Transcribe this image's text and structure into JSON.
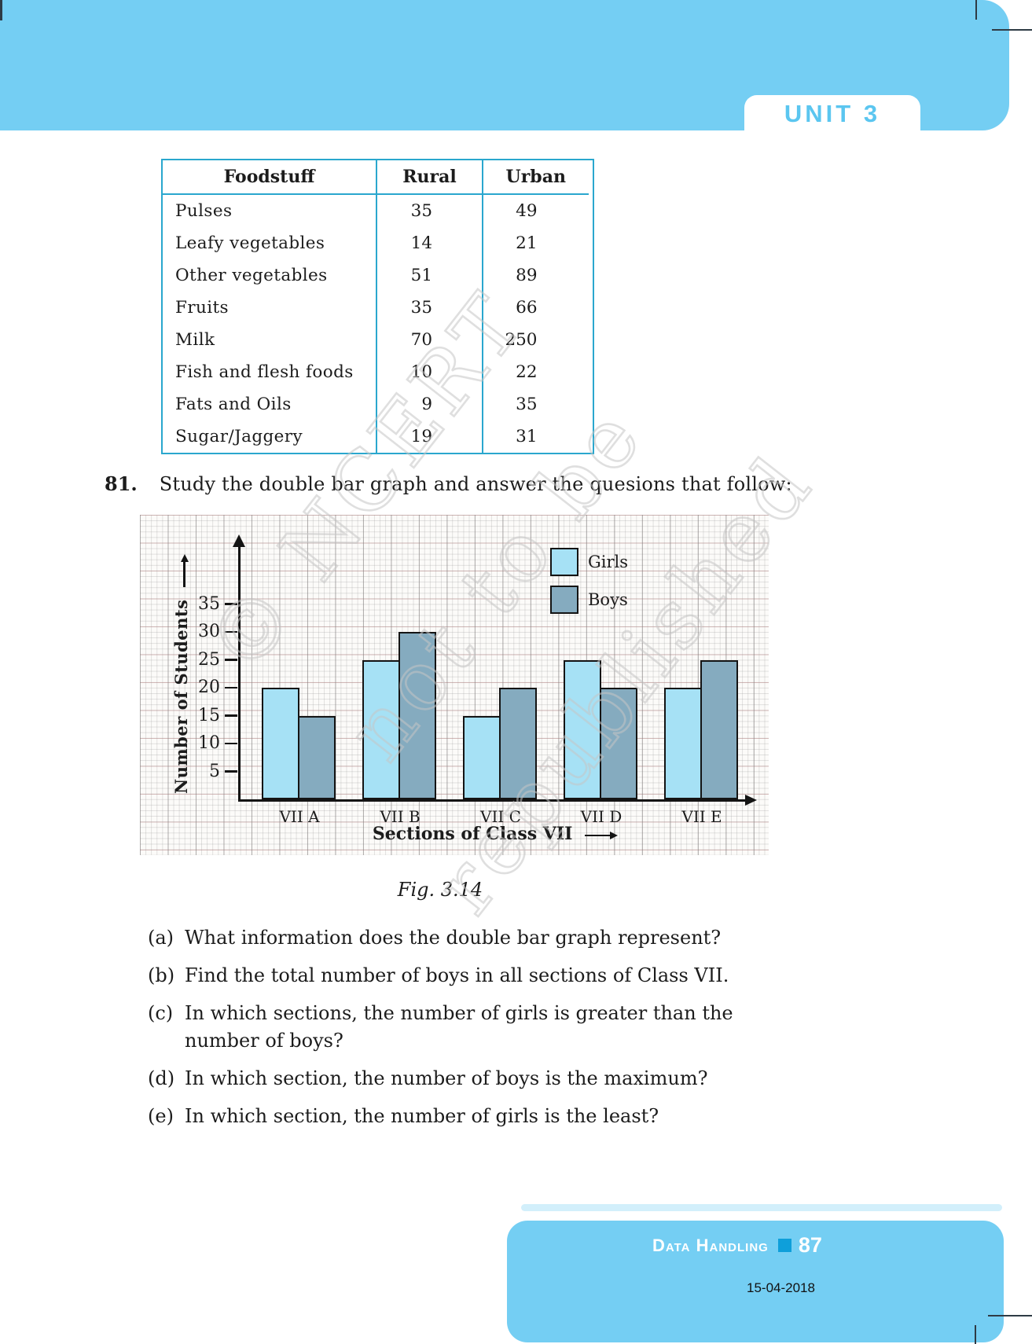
{
  "colors": {
    "sky_blue": "#74CEF3",
    "unit_text_blue": "#5BC6F0",
    "table_border_cyan": "#2AA7CE",
    "girls_bar": "#A6E1F5",
    "boys_bar": "#85ABBF",
    "page_square_blue": "#0E9FDA",
    "ink": "#1C1C1C"
  },
  "header": {
    "unit_label": "UNIT 3"
  },
  "table": {
    "headers": [
      "Foodstuff",
      "Rural",
      "Urban"
    ],
    "rows": [
      [
        "Pulses",
        "35",
        "49"
      ],
      [
        "Leafy vegetables",
        "14",
        "21"
      ],
      [
        "Other vegetables",
        "51",
        "89"
      ],
      [
        "Fruits",
        "35",
        "66"
      ],
      [
        "Milk",
        "70",
        "250"
      ],
      [
        "Fish and flesh foods",
        "10",
        "22"
      ],
      [
        "Fats and Oils",
        "9",
        "35"
      ],
      [
        "Sugar/Jaggery",
        "19",
        "31"
      ]
    ]
  },
  "question": {
    "number": "81.",
    "text": "Study the double bar graph and answer the quesions that follow:"
  },
  "chart_data": {
    "type": "bar",
    "title": "",
    "categories": [
      "VII A",
      "VII B",
      "VII C",
      "VII D",
      "VII E"
    ],
    "series": [
      {
        "name": "Girls",
        "values": [
          20,
          25,
          15,
          25,
          20
        ],
        "color": "#A6E1F5"
      },
      {
        "name": "Boys",
        "values": [
          15,
          30,
          20,
          20,
          25
        ],
        "color": "#85ABBF"
      }
    ],
    "xlabel": "Sections of Class VII",
    "ylabel": "Number of Students",
    "yticks": [
      5,
      10,
      15,
      20,
      25,
      30,
      35
    ],
    "ylim": [
      0,
      40
    ],
    "grid": true,
    "legend_position": "top-right"
  },
  "figure": {
    "caption": "Fig. 3.14"
  },
  "subquestions": [
    {
      "label": "(a)",
      "text": "What information does the double bar graph represent?"
    },
    {
      "label": "(b)",
      "text": "Find the total number of boys in all sections of Class VII."
    },
    {
      "label": "(c)",
      "text": "In which sections, the number of girls is greater than the number of boys?"
    },
    {
      "label": "(d)",
      "text": "In which section, the number of boys is the maximum?"
    },
    {
      "label": "(e)",
      "text": "In which section, the number of girls is the least?"
    }
  ],
  "watermark": {
    "line1": "© NCERT",
    "line2": "not to be republished"
  },
  "footer": {
    "chapter": "Data Handling",
    "page_number": "87",
    "date": "15-04-2018"
  }
}
